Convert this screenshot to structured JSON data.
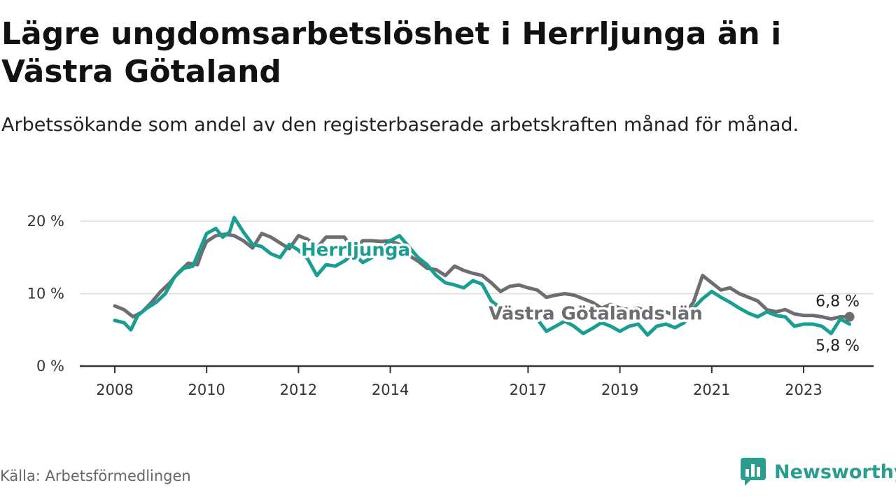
{
  "title": "Lägre ungdomsarbetslöshet i Herrljunga än i Västra Götaland",
  "subtitle": "Arbetssökande som andel av den registerbaserade arbetskraften månad för månad.",
  "source": "Källa: Arbetsförmedlingen",
  "brand": {
    "name": "Newsworthy",
    "icon": "newsworthy-logo-icon",
    "color": "#2a9d8f"
  },
  "chart_data": {
    "type": "line",
    "ylim": [
      0,
      20
    ],
    "xlim": [
      2008,
      2024
    ],
    "y_ticks": [
      0,
      10,
      20
    ],
    "y_tick_labels": [
      "0 %",
      "10 %",
      "20 %"
    ],
    "x_ticks": [
      2008,
      2010,
      2012,
      2014,
      2017,
      2019,
      2021,
      2023
    ],
    "x_tick_labels": [
      "2008",
      "2010",
      "2012",
      "2014",
      "2017",
      "2019",
      "2021",
      "2023"
    ],
    "grid": true,
    "series": [
      {
        "name": "Västra Götalands län",
        "color": "#6d6e71",
        "end_label": "6,8 %",
        "points": [
          [
            2008.0,
            8.3
          ],
          [
            2008.2,
            7.8
          ],
          [
            2008.4,
            6.8
          ],
          [
            2008.6,
            7.5
          ],
          [
            2008.8,
            8.8
          ],
          [
            2009.0,
            10.3
          ],
          [
            2009.2,
            11.5
          ],
          [
            2009.4,
            13.0
          ],
          [
            2009.6,
            14.2
          ],
          [
            2009.8,
            14.0
          ],
          [
            2009.9,
            15.8
          ],
          [
            2010.0,
            17.2
          ],
          [
            2010.2,
            18.0
          ],
          [
            2010.4,
            18.2
          ],
          [
            2010.6,
            18.0
          ],
          [
            2010.8,
            17.3
          ],
          [
            2011.0,
            16.3
          ],
          [
            2011.2,
            18.3
          ],
          [
            2011.4,
            17.8
          ],
          [
            2011.6,
            17.0
          ],
          [
            2011.8,
            16.2
          ],
          [
            2012.0,
            18.0
          ],
          [
            2012.2,
            17.5
          ],
          [
            2012.4,
            16.3
          ],
          [
            2012.6,
            17.8
          ],
          [
            2012.8,
            17.8
          ],
          [
            2013.0,
            17.8
          ],
          [
            2013.2,
            16.0
          ],
          [
            2013.4,
            17.3
          ],
          [
            2013.6,
            17.3
          ],
          [
            2013.8,
            17.2
          ],
          [
            2014.0,
            17.3
          ],
          [
            2014.2,
            16.8
          ],
          [
            2014.4,
            15.3
          ],
          [
            2014.6,
            14.5
          ],
          [
            2014.8,
            13.5
          ],
          [
            2015.0,
            13.3
          ],
          [
            2015.2,
            12.5
          ],
          [
            2015.4,
            13.8
          ],
          [
            2015.6,
            13.2
          ],
          [
            2015.8,
            12.8
          ],
          [
            2016.0,
            12.5
          ],
          [
            2016.2,
            11.5
          ],
          [
            2016.4,
            10.3
          ],
          [
            2016.6,
            11.0
          ],
          [
            2016.8,
            11.2
          ],
          [
            2017.0,
            10.8
          ],
          [
            2017.2,
            10.5
          ],
          [
            2017.4,
            9.5
          ],
          [
            2017.6,
            9.8
          ],
          [
            2017.8,
            10.0
          ],
          [
            2018.0,
            9.8
          ],
          [
            2018.2,
            9.3
          ],
          [
            2018.4,
            8.8
          ],
          [
            2018.6,
            8.0
          ],
          [
            2018.8,
            8.5
          ],
          [
            2019.0,
            8.0
          ],
          [
            2019.2,
            7.8
          ],
          [
            2019.4,
            8.0
          ],
          [
            2019.6,
            7.5
          ],
          [
            2019.8,
            7.3
          ],
          [
            2020.0,
            7.5
          ],
          [
            2020.2,
            7.0
          ],
          [
            2020.4,
            7.2
          ],
          [
            2020.6,
            8.8
          ],
          [
            2020.8,
            12.5
          ],
          [
            2021.0,
            11.5
          ],
          [
            2021.2,
            10.5
          ],
          [
            2021.4,
            10.8
          ],
          [
            2021.6,
            10.0
          ],
          [
            2021.8,
            9.5
          ],
          [
            2022.0,
            9.0
          ],
          [
            2022.2,
            7.8
          ],
          [
            2022.4,
            7.5
          ],
          [
            2022.6,
            7.8
          ],
          [
            2022.8,
            7.2
          ],
          [
            2023.0,
            7.0
          ],
          [
            2023.2,
            7.0
          ],
          [
            2023.4,
            6.8
          ],
          [
            2023.6,
            6.5
          ],
          [
            2023.8,
            6.8
          ],
          [
            2024.0,
            6.8
          ]
        ]
      },
      {
        "name": "Herrljunga",
        "color": "#1a9e92",
        "end_label": "5,8 %",
        "points": [
          [
            2008.0,
            6.3
          ],
          [
            2008.2,
            6.0
          ],
          [
            2008.35,
            5.0
          ],
          [
            2008.5,
            7.0
          ],
          [
            2008.7,
            8.0
          ],
          [
            2008.9,
            8.8
          ],
          [
            2009.1,
            10.0
          ],
          [
            2009.3,
            12.3
          ],
          [
            2009.5,
            13.5
          ],
          [
            2009.7,
            13.8
          ],
          [
            2009.9,
            16.8
          ],
          [
            2010.0,
            18.3
          ],
          [
            2010.2,
            19.0
          ],
          [
            2010.35,
            17.8
          ],
          [
            2010.5,
            18.5
          ],
          [
            2010.6,
            20.5
          ],
          [
            2010.8,
            18.5
          ],
          [
            2011.0,
            16.8
          ],
          [
            2011.2,
            16.5
          ],
          [
            2011.4,
            15.5
          ],
          [
            2011.6,
            15.0
          ],
          [
            2011.8,
            16.8
          ],
          [
            2012.0,
            16.0
          ],
          [
            2012.2,
            14.8
          ],
          [
            2012.4,
            12.5
          ],
          [
            2012.6,
            14.0
          ],
          [
            2012.8,
            13.8
          ],
          [
            2013.0,
            14.5
          ],
          [
            2013.2,
            15.5
          ],
          [
            2013.4,
            14.3
          ],
          [
            2013.6,
            15.0
          ],
          [
            2013.8,
            16.0
          ],
          [
            2014.0,
            17.3
          ],
          [
            2014.2,
            18.0
          ],
          [
            2014.4,
            16.5
          ],
          [
            2014.6,
            15.0
          ],
          [
            2014.8,
            14.0
          ],
          [
            2015.0,
            12.5
          ],
          [
            2015.2,
            11.5
          ],
          [
            2015.4,
            11.2
          ],
          [
            2015.6,
            10.8
          ],
          [
            2015.8,
            11.8
          ],
          [
            2016.0,
            11.3
          ],
          [
            2016.2,
            9.0
          ],
          [
            2016.4,
            8.0
          ],
          [
            2016.6,
            6.8
          ],
          [
            2016.8,
            7.5
          ],
          [
            2017.0,
            7.8
          ],
          [
            2017.2,
            6.5
          ],
          [
            2017.4,
            4.8
          ],
          [
            2017.6,
            5.5
          ],
          [
            2017.8,
            6.2
          ],
          [
            2018.0,
            5.5
          ],
          [
            2018.2,
            4.5
          ],
          [
            2018.4,
            5.2
          ],
          [
            2018.6,
            6.0
          ],
          [
            2018.8,
            5.5
          ],
          [
            2019.0,
            4.8
          ],
          [
            2019.2,
            5.5
          ],
          [
            2019.4,
            5.8
          ],
          [
            2019.6,
            4.3
          ],
          [
            2019.8,
            5.5
          ],
          [
            2020.0,
            5.8
          ],
          [
            2020.2,
            5.3
          ],
          [
            2020.4,
            6.0
          ],
          [
            2020.6,
            8.0
          ],
          [
            2020.8,
            9.3
          ],
          [
            2021.0,
            10.3
          ],
          [
            2021.2,
            9.5
          ],
          [
            2021.4,
            8.8
          ],
          [
            2021.6,
            8.0
          ],
          [
            2021.8,
            7.3
          ],
          [
            2022.0,
            6.8
          ],
          [
            2022.2,
            7.5
          ],
          [
            2022.4,
            7.0
          ],
          [
            2022.6,
            6.8
          ],
          [
            2022.8,
            5.5
          ],
          [
            2023.0,
            5.8
          ],
          [
            2023.2,
            5.8
          ],
          [
            2023.4,
            5.5
          ],
          [
            2023.6,
            4.5
          ],
          [
            2023.8,
            6.5
          ],
          [
            2024.0,
            5.8
          ]
        ]
      }
    ],
    "annotations": [
      {
        "text": "Herrljunga",
        "series": "Herrljunga"
      },
      {
        "text": "Västra Götalands län",
        "series": "Västra Götalands län"
      }
    ]
  }
}
